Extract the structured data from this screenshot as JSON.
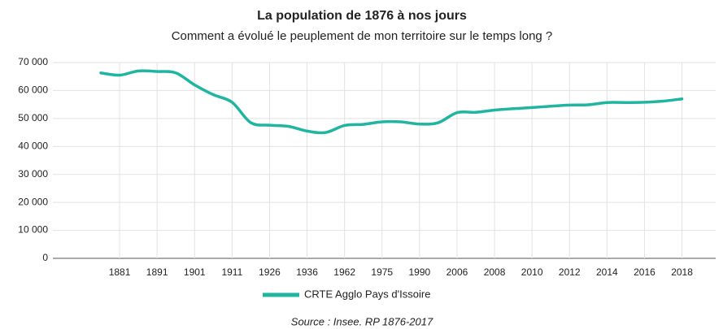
{
  "chart_data": {
    "type": "line",
    "title": "La population de 1876 à nos jours",
    "subtitle": "Comment a évolué le peuplement de mon territoire sur le temps long ?",
    "source": "Source : Insee. RP 1876-2017",
    "categories": [
      null,
      "1881",
      null,
      "1891",
      null,
      "1901",
      null,
      "1911",
      null,
      "1926",
      null,
      "1936",
      null,
      "1962",
      null,
      "1975",
      null,
      "1990",
      null,
      "2006",
      null,
      "2008",
      null,
      "2010",
      null,
      "2012",
      null,
      "2014",
      null,
      "2016",
      null,
      "2018"
    ],
    "series": [
      {
        "name": "CRTE Agglo Pays d'Issoire",
        "color": "#1fb5a0",
        "values": [
          66300,
          65500,
          67000,
          66800,
          66300,
          62000,
          58500,
          55800,
          48500,
          47600,
          47200,
          45500,
          45000,
          47500,
          47900,
          48800,
          48800,
          48000,
          48500,
          52100,
          52200,
          53000,
          53500,
          53900,
          54400,
          54800,
          54900,
          55700,
          55700,
          55800,
          56200,
          57000
        ]
      }
    ],
    "ylim": [
      0,
      70000
    ],
    "yticks": [
      {
        "value": 0,
        "label": "0"
      },
      {
        "value": 10000,
        "label": "10 000"
      },
      {
        "value": 20000,
        "label": "20 000"
      },
      {
        "value": 30000,
        "label": "30 000"
      },
      {
        "value": 40000,
        "label": "40 000"
      },
      {
        "value": 50000,
        "label": "50 000"
      },
      {
        "value": 60000,
        "label": "60 000"
      },
      {
        "value": 70000,
        "label": "70 000"
      }
    ],
    "grid": true,
    "legend": "bottom"
  }
}
